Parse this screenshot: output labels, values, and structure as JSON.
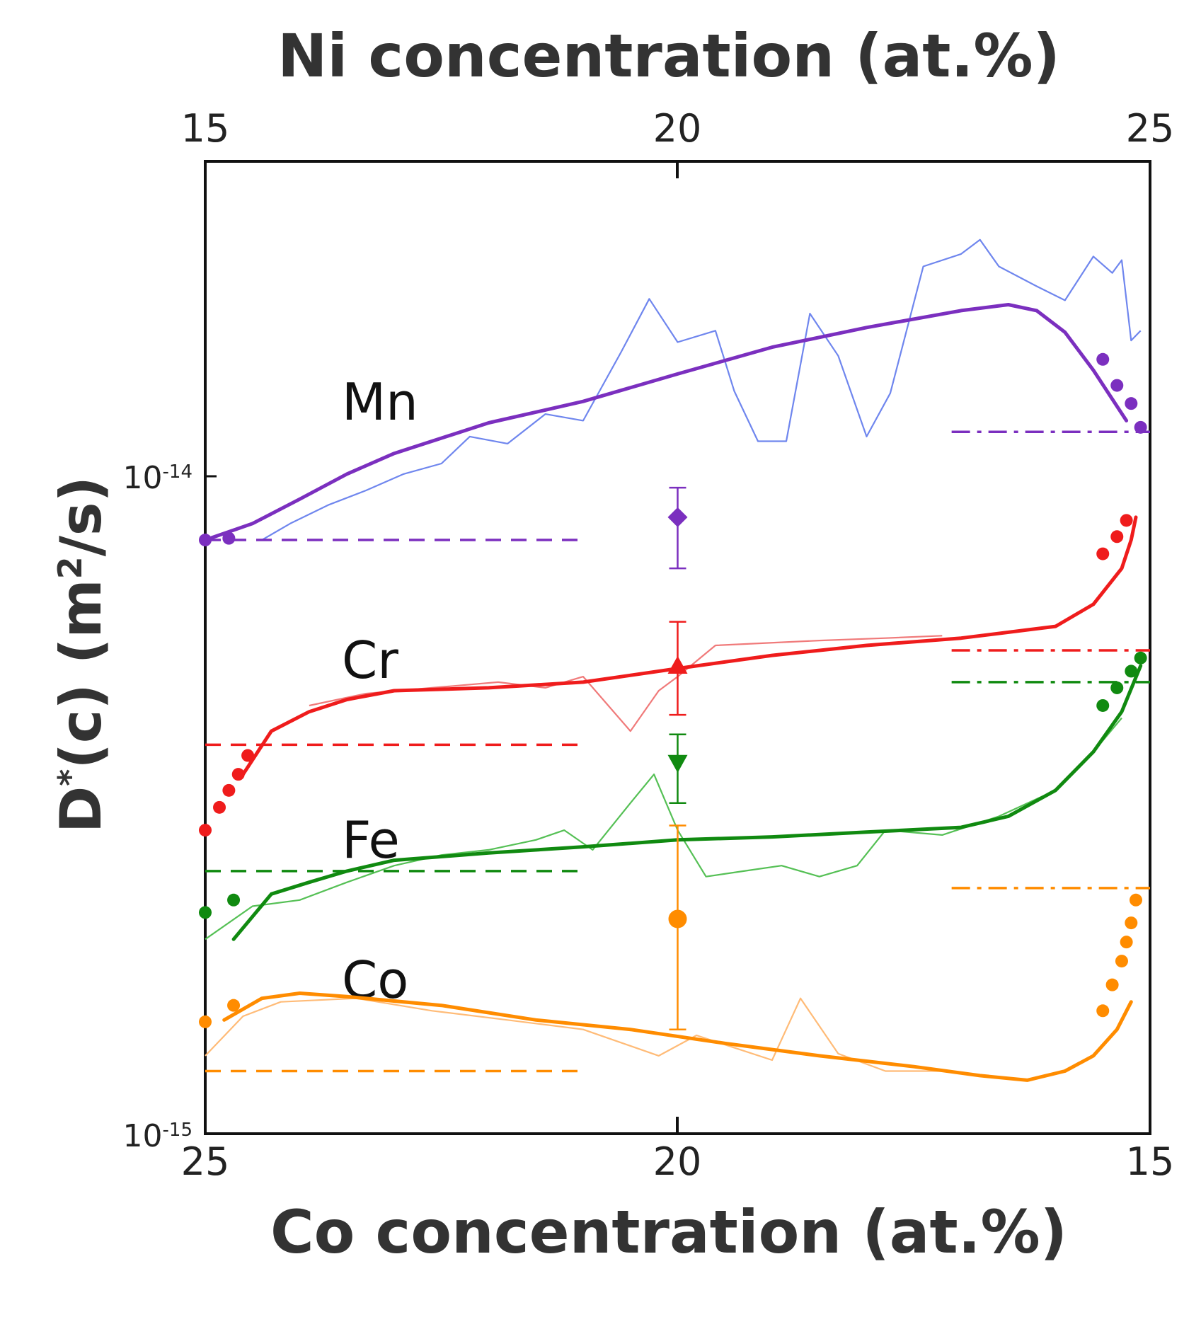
{
  "chart_data": {
    "type": "line",
    "title": "",
    "top_axis": {
      "label": "Ni concentration (at.%)",
      "ticks": [
        "15",
        "20",
        "25"
      ],
      "range": [
        15,
        25
      ]
    },
    "bottom_axis": {
      "label": "Co concentration (at.%)",
      "ticks": [
        "25",
        "20",
        "15"
      ],
      "range": [
        25,
        15
      ]
    },
    "y_axis": {
      "label": "D*(c) (m²/s)",
      "label_parts": {
        "main": "D",
        "sup": "*",
        "rest": "(c) (m",
        "unit_sup": "2",
        "tail": "/s)"
      },
      "scale": "log",
      "range": [
        1e-15,
        3.2e-14
      ],
      "tick_labels": [
        {
          "value": 1e-14,
          "base": "10",
          "exp": "-14"
        },
        {
          "value": 1e-15,
          "base": "10",
          "exp": "-15"
        }
      ]
    },
    "series": [
      {
        "name": "Mn",
        "color": "#7b2fbf",
        "raw_color": "#6f86ee",
        "fit": [
          [
            25,
            8.3e-15
          ],
          [
            24.5,
            8.8e-15
          ],
          [
            24,
            9.6e-15
          ],
          [
            23.5,
            1.05e-14
          ],
          [
            23,
            1.13e-14
          ],
          [
            22,
            1.26e-14
          ],
          [
            21,
            1.36e-14
          ],
          [
            20,
            1.5e-14
          ],
          [
            19,
            1.65e-14
          ],
          [
            18,
            1.77e-14
          ],
          [
            17,
            1.88e-14
          ],
          [
            16.5,
            1.92e-14
          ],
          [
            16.2,
            1.88e-14
          ],
          [
            15.9,
            1.74e-14
          ],
          [
            15.6,
            1.52e-14
          ],
          [
            15.25,
            1.27e-14
          ]
        ],
        "raw": [
          [
            24.4,
            8.3e-15
          ],
          [
            24.1,
            8.8e-15
          ],
          [
            23.7,
            9.4e-15
          ],
          [
            23.3,
            9.9e-15
          ],
          [
            22.9,
            1.05e-14
          ],
          [
            22.5,
            1.09e-14
          ],
          [
            22.2,
            1.2e-14
          ],
          [
            21.8,
            1.17e-14
          ],
          [
            21.4,
            1.3e-14
          ],
          [
            21.0,
            1.27e-14
          ],
          [
            20.6,
            1.62e-14
          ],
          [
            20.3,
            1.96e-14
          ],
          [
            20.0,
            1.68e-14
          ],
          [
            19.6,
            1.75e-14
          ],
          [
            19.4,
            1.41e-14
          ],
          [
            19.15,
            1.18e-14
          ],
          [
            18.85,
            1.18e-14
          ],
          [
            18.6,
            1.86e-14
          ],
          [
            18.3,
            1.6e-14
          ],
          [
            18.0,
            1.2e-14
          ],
          [
            17.75,
            1.4e-14
          ],
          [
            17.4,
            2.2e-14
          ],
          [
            17.0,
            2.3e-14
          ],
          [
            16.8,
            2.42e-14
          ],
          [
            16.6,
            2.2e-14
          ],
          [
            16.2,
            2.05e-14
          ],
          [
            15.9,
            1.95e-14
          ],
          [
            15.6,
            2.28e-14
          ],
          [
            15.4,
            2.15e-14
          ],
          [
            15.3,
            2.25e-14
          ],
          [
            15.2,
            1.69e-14
          ],
          [
            15.1,
            1.75e-14
          ]
        ],
        "extrapolated_left": [
          [
            25,
            8.3e-15
          ],
          [
            24.75,
            8.35e-15
          ]
        ],
        "extrapolated_right": [
          [
            15.5,
            1.58e-14
          ],
          [
            15.35,
            1.44e-14
          ],
          [
            15.2,
            1.35e-14
          ],
          [
            15.1,
            1.24e-14
          ]
        ],
        "reference_left": 8.3e-15,
        "reference_right": 1.22e-14,
        "tracer": {
          "x": 20,
          "y": 9e-15,
          "err_low": 7.5e-15,
          "err_high": 1e-14,
          "marker": "diamond"
        }
      },
      {
        "name": "Cr",
        "color": "#ef1c1c",
        "raw_color": "#f07a7a",
        "fit": [
          [
            24.6,
            3.6e-15
          ],
          [
            24.3,
            4.2e-15
          ],
          [
            23.9,
            4.5e-15
          ],
          [
            23.5,
            4.7e-15
          ],
          [
            23,
            4.85e-15
          ],
          [
            22,
            4.9e-15
          ],
          [
            21,
            5e-15
          ],
          [
            20,
            5.25e-15
          ],
          [
            19,
            5.5e-15
          ],
          [
            18,
            5.7e-15
          ],
          [
            17,
            5.85e-15
          ],
          [
            16,
            6.1e-15
          ],
          [
            15.6,
            6.6e-15
          ],
          [
            15.3,
            7.5e-15
          ],
          [
            15.2,
            8.3e-15
          ],
          [
            15.15,
            9e-15
          ]
        ],
        "raw": [
          [
            23.9,
            4.6e-15
          ],
          [
            23.3,
            4.8e-15
          ],
          [
            22.6,
            4.9e-15
          ],
          [
            21.9,
            5e-15
          ],
          [
            21.4,
            4.9e-15
          ],
          [
            21.0,
            5.1e-15
          ],
          [
            20.5,
            4.2e-15
          ],
          [
            20.2,
            4.85e-15
          ],
          [
            20.0,
            5.1e-15
          ],
          [
            19.6,
            5.7e-15
          ],
          [
            18.5,
            5.8e-15
          ],
          [
            17.8,
            5.85e-15
          ],
          [
            17.2,
            5.9e-15
          ]
        ],
        "extrapolated_left": [
          [
            25,
            2.95e-15
          ],
          [
            24.85,
            3.2e-15
          ],
          [
            24.75,
            3.4e-15
          ],
          [
            24.65,
            3.6e-15
          ],
          [
            24.55,
            3.85e-15
          ]
        ],
        "extrapolated_right": [
          [
            15.5,
            7.9e-15
          ],
          [
            15.35,
            8.4e-15
          ],
          [
            15.25,
            8.9e-15
          ]
        ],
        "reference_left": 4e-15,
        "reference_right": 5.6e-15,
        "tracer": {
          "x": 20,
          "y": 5.3e-15,
          "err_low": 4.45e-15,
          "err_high": 6.2e-15,
          "marker": "triangle-up"
        }
      },
      {
        "name": "Fe",
        "color": "#108a10",
        "raw_color": "#55c055",
        "fit": [
          [
            24.7,
            2e-15
          ],
          [
            24.3,
            2.35e-15
          ],
          [
            23.9,
            2.45e-15
          ],
          [
            23.5,
            2.55e-15
          ],
          [
            23,
            2.65e-15
          ],
          [
            22,
            2.72e-15
          ],
          [
            21,
            2.78e-15
          ],
          [
            20,
            2.85e-15
          ],
          [
            19,
            2.88e-15
          ],
          [
            18,
            2.93e-15
          ],
          [
            17,
            2.98e-15
          ],
          [
            16.5,
            3.1e-15
          ],
          [
            16,
            3.4e-15
          ],
          [
            15.6,
            3.9e-15
          ],
          [
            15.3,
            4.5e-15
          ],
          [
            15.1,
            5.3e-15
          ]
        ],
        "raw": [
          [
            25,
            2e-15
          ],
          [
            24.5,
            2.25e-15
          ],
          [
            24,
            2.3e-15
          ],
          [
            23.5,
            2.45e-15
          ],
          [
            23,
            2.6e-15
          ],
          [
            22.5,
            2.7e-15
          ],
          [
            22,
            2.75e-15
          ],
          [
            21.5,
            2.85e-15
          ],
          [
            21.2,
            2.95e-15
          ],
          [
            20.9,
            2.75e-15
          ],
          [
            20.5,
            3.25e-15
          ],
          [
            20.25,
            3.6e-15
          ],
          [
            20.0,
            2.95e-15
          ],
          [
            19.7,
            2.5e-15
          ],
          [
            19.3,
            2.55e-15
          ],
          [
            18.9,
            2.6e-15
          ],
          [
            18.5,
            2.5e-15
          ],
          [
            18.1,
            2.6e-15
          ],
          [
            17.8,
            2.95e-15
          ],
          [
            17.2,
            2.9e-15
          ],
          [
            16.6,
            3.1e-15
          ],
          [
            16.0,
            3.4e-15
          ],
          [
            15.6,
            3.9e-15
          ],
          [
            15.3,
            4.4e-15
          ]
        ],
        "extrapolated_left": [
          [
            25,
            2.2e-15
          ],
          [
            24.7,
            2.3e-15
          ]
        ],
        "extrapolated_right": [
          [
            15.5,
            4.6e-15
          ],
          [
            15.35,
            4.9e-15
          ],
          [
            15.2,
            5.2e-15
          ],
          [
            15.1,
            5.45e-15
          ]
        ],
        "reference_left": 2.55e-15,
        "reference_right": 5e-15,
        "tracer": {
          "x": 20,
          "y": 3.75e-15,
          "err_low": 3.25e-15,
          "err_high": 4.15e-15,
          "marker": "triangle-down"
        }
      },
      {
        "name": "Co",
        "color": "#ff8c00",
        "raw_color": "#ffbb77",
        "fit": [
          [
            24.8,
            1.5e-15
          ],
          [
            24.4,
            1.62e-15
          ],
          [
            24,
            1.65e-15
          ],
          [
            23.5,
            1.63e-15
          ],
          [
            22.5,
            1.58e-15
          ],
          [
            21.5,
            1.5e-15
          ],
          [
            20.5,
            1.45e-15
          ],
          [
            19.5,
            1.38e-15
          ],
          [
            18.5,
            1.32e-15
          ],
          [
            17.5,
            1.27e-15
          ],
          [
            16.8,
            1.23e-15
          ],
          [
            16.3,
            1.21e-15
          ],
          [
            15.9,
            1.25e-15
          ],
          [
            15.6,
            1.32e-15
          ],
          [
            15.35,
            1.45e-15
          ],
          [
            15.2,
            1.6e-15
          ]
        ],
        "raw": [
          [
            25,
            1.32e-15
          ],
          [
            24.6,
            1.52e-15
          ],
          [
            24.2,
            1.6e-15
          ],
          [
            23.4,
            1.62e-15
          ],
          [
            22.6,
            1.55e-15
          ],
          [
            21.8,
            1.5e-15
          ],
          [
            21.0,
            1.45e-15
          ],
          [
            20.2,
            1.32e-15
          ],
          [
            19.8,
            1.42e-15
          ],
          [
            19.0,
            1.3e-15
          ],
          [
            18.7,
            1.62e-15
          ],
          [
            18.3,
            1.33e-15
          ],
          [
            17.8,
            1.25e-15
          ],
          [
            17.2,
            1.25e-15
          ]
        ],
        "extrapolated_left": [
          [
            25,
            1.49e-15
          ],
          [
            24.7,
            1.58e-15
          ]
        ],
        "extrapolated_right": [
          [
            15.5,
            1.55e-15
          ],
          [
            15.4,
            1.7e-15
          ],
          [
            15.3,
            1.85e-15
          ],
          [
            15.25,
            1.98e-15
          ],
          [
            15.2,
            2.12e-15
          ],
          [
            15.15,
            2.3e-15
          ]
        ],
        "reference_left": 1.25e-15,
        "reference_right": 2.4e-15,
        "tracer": {
          "x": 20,
          "y": 2.15e-15,
          "err_low": 1.45e-15,
          "err_high": 3e-15,
          "marker": "circle"
        }
      }
    ],
    "legend": "inline labels"
  }
}
